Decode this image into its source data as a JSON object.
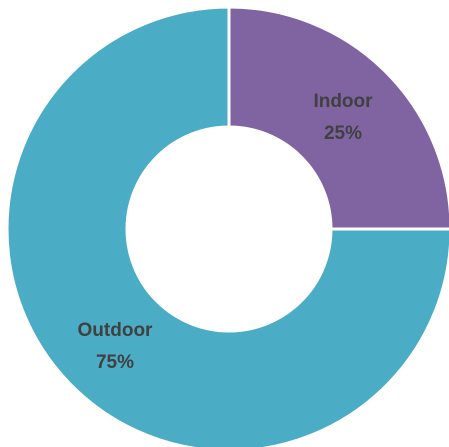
{
  "chart_data": {
    "type": "pie",
    "variant": "donut",
    "title": "",
    "legend": "none",
    "slices": [
      {
        "label": "Indoor",
        "value": 25,
        "value_label": "25%",
        "color": "#8064A2"
      },
      {
        "label": "Outdoor",
        "value": 75,
        "value_label": "75%",
        "color": "#4BACC6"
      }
    ],
    "separator_color": "#ffffff"
  }
}
